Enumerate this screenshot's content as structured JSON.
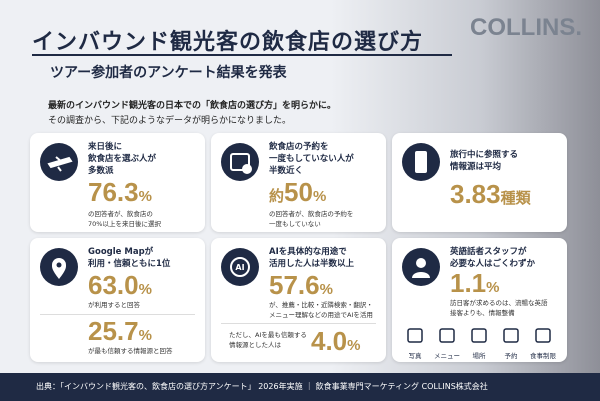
{
  "header": {
    "title": "インバウンド観光客の飲食店の選び方",
    "subtitle": "ツアー参加者のアンケート結果を発表",
    "brand": "COLLINS."
  },
  "intro": [
    "最新のインバウンド観光客の日本での「飲食店の選び方」を明らかに。",
    "その調査から、下記のようなデータが明らかになりました。"
  ],
  "cards": [
    {
      "heading": [
        "来日後に",
        "飲食店を選ぶ人が",
        "多数派"
      ],
      "stat": "76.3",
      "unit": "%",
      "note": [
        "の回答者が、飲食店の",
        "70%以上を来日後に選択"
      ]
    },
    {
      "heading": [
        "飲食店の予約を",
        "一度もしていない人が",
        "半数近く"
      ],
      "prefix": "約",
      "stat": "50",
      "unit": "%",
      "note": [
        "の回答者が、飲食店の予約を",
        "一度もしていない"
      ]
    },
    {
      "heading": [
        "旅行中に参照する",
        "情報源は平均"
      ],
      "stat": "3.83",
      "unit": "種類"
    },
    {
      "heading": [
        "Google Mapが",
        "利用・信頼ともに1位"
      ],
      "stat": "63.0",
      "unit": "%",
      "note": [
        "が利用すると回答"
      ],
      "stat2": "25.7",
      "unit2": "%",
      "note2": [
        "が最も信頼する情報源と回答"
      ]
    },
    {
      "heading": [
        "AIを具体的な用途で",
        "活用した人は半数以上"
      ],
      "stat": "57.6",
      "unit": "%",
      "note": [
        "が、推薦・比較・近隣検索・翻訳・",
        "メニュー理解などの用途でAIを活用"
      ],
      "note2": [
        "ただし、AIを最も信頼する",
        "情報源とした人は"
      ],
      "stat2": "4.0",
      "unit2": "%"
    },
    {
      "heading": [
        "英語話者スタッフが",
        "必要な人はごくわずか"
      ],
      "stat": "1.1",
      "unit": "%",
      "note": [
        "訪日客が求めるのは、流暢な英語",
        "接客よりも、情報整備"
      ],
      "icons": [
        "写真",
        "メニュー",
        "場所",
        "予約",
        "食事制限"
      ]
    }
  ],
  "footer": "出典：「インバウンド観光客の、飲食店の選び方アンケート」 2026年実施 ｜ 飲食事業専門マーケティング COLLINS株式会社"
}
